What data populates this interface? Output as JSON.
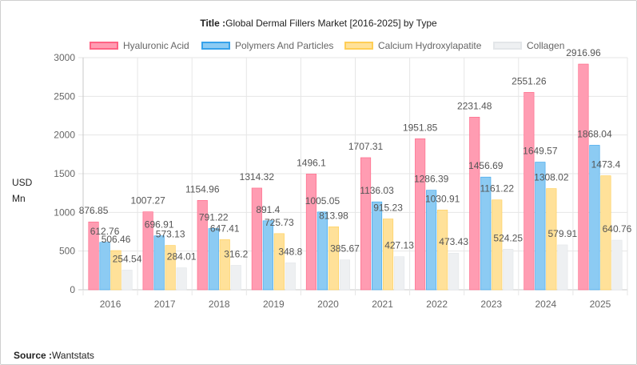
{
  "header": {
    "title_label": "Title :",
    "title_text": "Global Dermal Fillers Market [2016-2025] by Type"
  },
  "footer": {
    "source_label": "Source :",
    "source_text": "Wantstats"
  },
  "y_unit": {
    "line1": "USD",
    "line2": "Mn"
  },
  "chart_data": {
    "type": "bar",
    "title": "Global Dermal Fillers Market [2016-2025] by Type",
    "ylabel": "USD Mn",
    "xlabel": "",
    "ylim": [
      0,
      3000
    ],
    "yticks": [
      0,
      500,
      1000,
      1500,
      2000,
      2500,
      3000
    ],
    "grid": true,
    "legend_position": "top",
    "categories": [
      "2016",
      "2017",
      "2018",
      "2019",
      "2020",
      "2021",
      "2022",
      "2023",
      "2024",
      "2025"
    ],
    "series": [
      {
        "name": "Hyaluronic Acid",
        "color": "#ff9cb2",
        "border": "#ff6384",
        "values": [
          876.85,
          1007.27,
          1154.96,
          1314.32,
          1496.1,
          1707.31,
          1951.85,
          2231.48,
          2551.26,
          2916.96
        ]
      },
      {
        "name": "Polymers And Particles",
        "color": "#8ccbf3",
        "border": "#36a2eb",
        "values": [
          612.76,
          696.91,
          791.22,
          891.4,
          1005.05,
          1136.03,
          1286.39,
          1456.69,
          1649.57,
          1868.04
        ]
      },
      {
        "name": "Calcium Hydroxylapatite",
        "color": "#ffe199",
        "border": "#ffce56",
        "values": [
          506.46,
          573.13,
          647.41,
          725.73,
          813.98,
          915.23,
          1030.91,
          1161.22,
          1308.02,
          1473.4
        ]
      },
      {
        "name": "Collagen",
        "color": "#eef0f2",
        "border": "#e3e6e9",
        "values": [
          254.54,
          284.01,
          316.2,
          348.8,
          385.67,
          427.13,
          473.43,
          524.25,
          579.91,
          640.76
        ]
      }
    ]
  }
}
